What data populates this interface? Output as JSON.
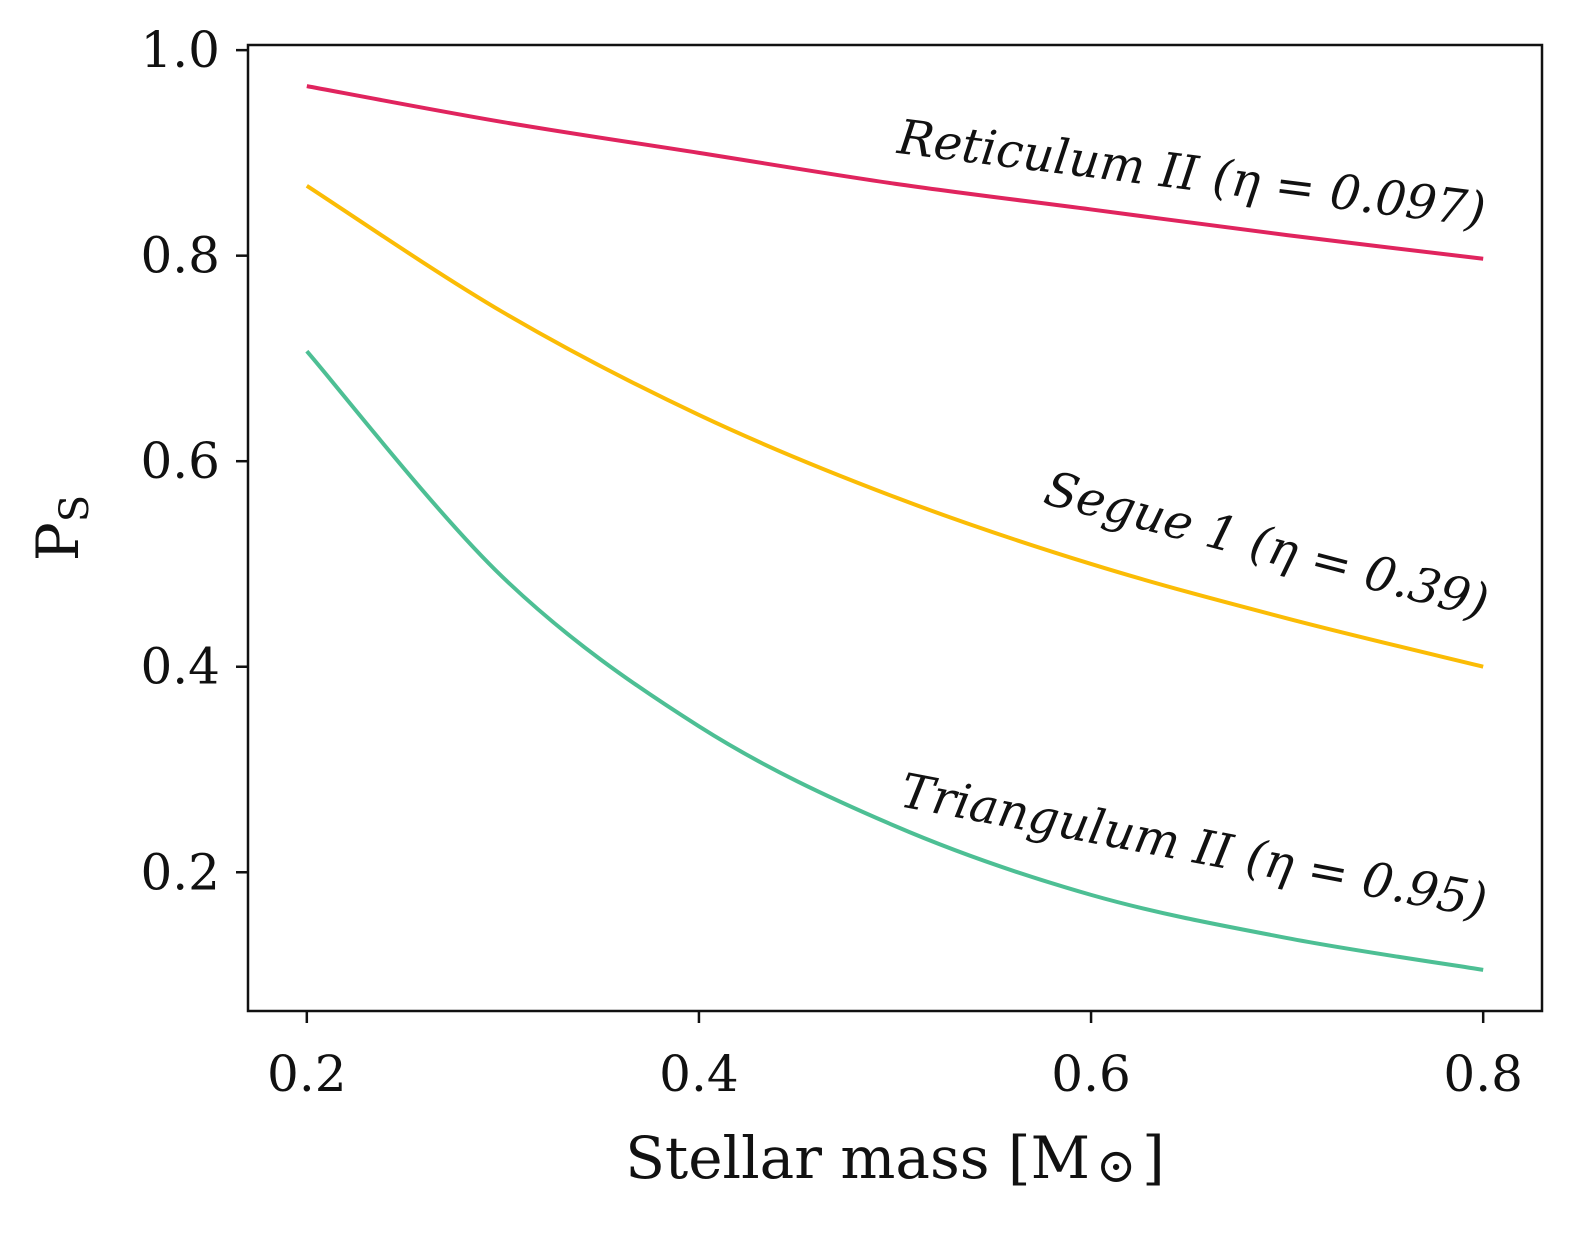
{
  "chart_data": {
    "type": "line",
    "title": "",
    "xlabel": "Stellar mass [M",
    "xlabel_symbol": "⊙",
    "xlabel_close": "]",
    "ylabel": "P",
    "ylabel_sub": "S",
    "xlim": [
      0.17,
      0.83
    ],
    "ylim": [
      0.065,
      1.005
    ],
    "x_ticks": [
      0.2,
      0.4,
      0.6,
      0.8
    ],
    "x_tick_labels": [
      "0.2",
      "0.4",
      "0.6",
      "0.8"
    ],
    "y_ticks": [
      0.2,
      0.4,
      0.6,
      0.8,
      1.0
    ],
    "y_tick_labels": [
      "0.2",
      "0.4",
      "0.6",
      "0.8",
      "1.0"
    ],
    "grid": false,
    "legend": "none (inline labels)",
    "x": [
      0.2,
      0.3,
      0.4,
      0.5,
      0.6,
      0.7,
      0.8
    ],
    "series": [
      {
        "name": "Reticulum II",
        "label": "Reticulum II (η = 0.097)",
        "color": "#e0245e",
        "values": [
          0.965,
          0.93,
          0.9,
          0.87,
          0.845,
          0.82,
          0.797
        ]
      },
      {
        "name": "Segue 1",
        "label": "Segue 1 (η = 0.39)",
        "color": "#fbbc05",
        "values": [
          0.868,
          0.745,
          0.645,
          0.565,
          0.5,
          0.447,
          0.4
        ]
      },
      {
        "name": "Triangulum II",
        "label": "Triangulum II (η = 0.95)",
        "color": "#4dbf94",
        "values": [
          0.707,
          0.487,
          0.342,
          0.245,
          0.178,
          0.136,
          0.105
        ]
      }
    ]
  }
}
